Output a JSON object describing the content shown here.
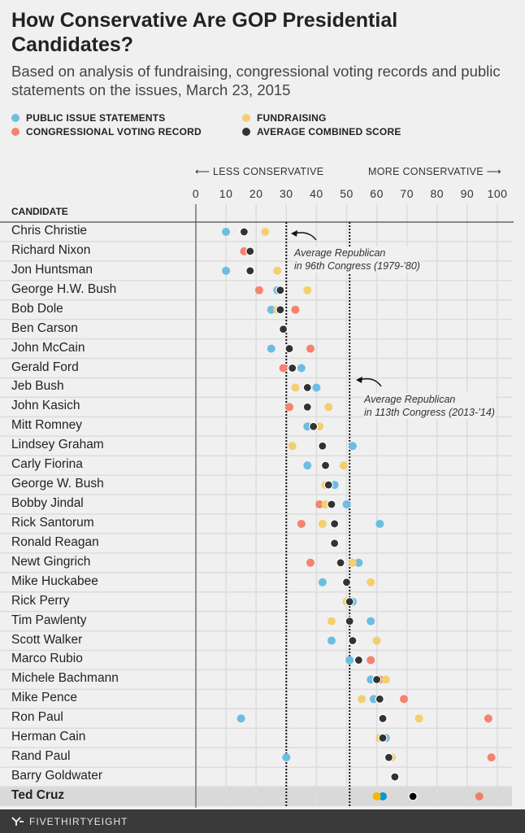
{
  "title": "How Conservative Are GOP Presidential Candidates?",
  "subtitle": "Based on analysis of fundraising, congressional voting records and public statements on the issues, March 23, 2015",
  "legend": [
    {
      "label": "PUBLIC ISSUE STATEMENTS",
      "color": "#6cbde4"
    },
    {
      "label": "FUNDRAISING",
      "color": "#f2cf6f"
    },
    {
      "label": "CONGRESSIONAL VOTING RECORD",
      "color": "#f5836e"
    },
    {
      "label": "AVERAGE COMBINED SCORE",
      "color": "#333333"
    }
  ],
  "direction": {
    "left": "LESS CONSERVATIVE",
    "right": "MORE CONSERVATIVE"
  },
  "column_header": "CANDIDATE",
  "annotations": [
    {
      "text_line1": "Average Republican",
      "text_line2": "in 96th Congress (1979-’80)",
      "value": 30
    },
    {
      "text_line1": "Average Republican",
      "text_line2": "in 113th Congress (2013-’14)",
      "value": 51
    }
  ],
  "footer": {
    "brand": "FIVETHIRTYEIGHT"
  },
  "chart_data": {
    "type": "scatter",
    "xlim": [
      0,
      100
    ],
    "xticks": [
      "0",
      "10",
      "20",
      "30",
      "40",
      "50",
      "60",
      "70",
      "80",
      "90",
      "100"
    ],
    "grid": true,
    "legend_placement": "top-left",
    "highlighted": "Ted Cruz",
    "reference_lines": [
      30,
      51
    ],
    "series_keys": [
      "statements",
      "fundraising",
      "voting",
      "combined"
    ],
    "rows": [
      {
        "name": "Chris Christie",
        "statements": 10,
        "fundraising": 23,
        "voting": null,
        "combined": 16
      },
      {
        "name": "Richard Nixon",
        "statements": null,
        "fundraising": null,
        "voting": 16,
        "combined": 18
      },
      {
        "name": "Jon Huntsman",
        "statements": 10,
        "fundraising": 27,
        "voting": null,
        "combined": 18
      },
      {
        "name": "George H.W. Bush",
        "statements": 27,
        "fundraising": 37,
        "voting": 21,
        "combined": 28
      },
      {
        "name": "Bob Dole",
        "statements": 25,
        "fundraising": 27,
        "voting": 33,
        "combined": 28
      },
      {
        "name": "Ben Carson",
        "statements": null,
        "fundraising": null,
        "voting": null,
        "combined": 29
      },
      {
        "name": "John McCain",
        "statements": 25,
        "fundraising": null,
        "voting": 38,
        "combined": 31
      },
      {
        "name": "Gerald Ford",
        "statements": 35,
        "fundraising": null,
        "voting": 29,
        "combined": 32
      },
      {
        "name": "Jeb Bush",
        "statements": 40,
        "fundraising": 33,
        "voting": null,
        "combined": 37
      },
      {
        "name": "John Kasich",
        "statements": null,
        "fundraising": 44,
        "voting": 31,
        "combined": 37
      },
      {
        "name": "Mitt Romney",
        "statements": 37,
        "fundraising": 41,
        "voting": null,
        "combined": 39
      },
      {
        "name": "Lindsey Graham",
        "statements": 52,
        "fundraising": 32,
        "voting": null,
        "combined": 42
      },
      {
        "name": "Carly Fiorina",
        "statements": 37,
        "fundraising": 49,
        "voting": null,
        "combined": 43
      },
      {
        "name": "George W. Bush",
        "statements": 46,
        "fundraising": 43,
        "voting": null,
        "combined": 44
      },
      {
        "name": "Bobby Jindal",
        "statements": 50,
        "fundraising": 43,
        "voting": 41,
        "combined": 45
      },
      {
        "name": "Rick Santorum",
        "statements": 61,
        "fundraising": 42,
        "voting": 35,
        "combined": 46
      },
      {
        "name": "Ronald Reagan",
        "statements": null,
        "fundraising": null,
        "voting": null,
        "combined": 46
      },
      {
        "name": "Newt Gingrich",
        "statements": 54,
        "fundraising": 52,
        "voting": 38,
        "combined": 48
      },
      {
        "name": "Mike Huckabee",
        "statements": 42,
        "fundraising": 58,
        "voting": null,
        "combined": 50
      },
      {
        "name": "Rick Perry",
        "statements": 52,
        "fundraising": 50,
        "voting": null,
        "combined": 51
      },
      {
        "name": "Tim Pawlenty",
        "statements": 58,
        "fundraising": 45,
        "voting": null,
        "combined": 51
      },
      {
        "name": "Scott Walker",
        "statements": 45,
        "fundraising": 60,
        "voting": null,
        "combined": 52
      },
      {
        "name": "Marco Rubio",
        "statements": 51,
        "fundraising": null,
        "voting": 58,
        "combined": 54
      },
      {
        "name": "Michele Bachmann",
        "statements": 58,
        "fundraising": 63,
        "voting": 61,
        "combined": 60
      },
      {
        "name": "Mike Pence",
        "statements": 59,
        "fundraising": 55,
        "voting": 69,
        "combined": 61
      },
      {
        "name": "Ron Paul",
        "statements": 15,
        "fundraising": 74,
        "voting": 97,
        "combined": 62
      },
      {
        "name": "Herman Cain",
        "statements": 63,
        "fundraising": 61,
        "voting": null,
        "combined": 62
      },
      {
        "name": "Rand Paul",
        "statements": 30,
        "fundraising": 65,
        "voting": 98,
        "combined": 64
      },
      {
        "name": "Barry Goldwater",
        "statements": null,
        "fundraising": null,
        "voting": null,
        "combined": 66
      },
      {
        "name": "Ted Cruz",
        "statements": 62,
        "fundraising": 60,
        "voting": 94,
        "combined": 72
      }
    ],
    "colors": {
      "statements": "#6cbde4",
      "fundraising": "#f2cf6f",
      "voting": "#f5836e",
      "combined": "#333333"
    },
    "highlight_colors": {
      "statements": "#0097d9",
      "fundraising": "#f4b800",
      "voting": "#f27e6a",
      "combined": "#000000"
    }
  }
}
